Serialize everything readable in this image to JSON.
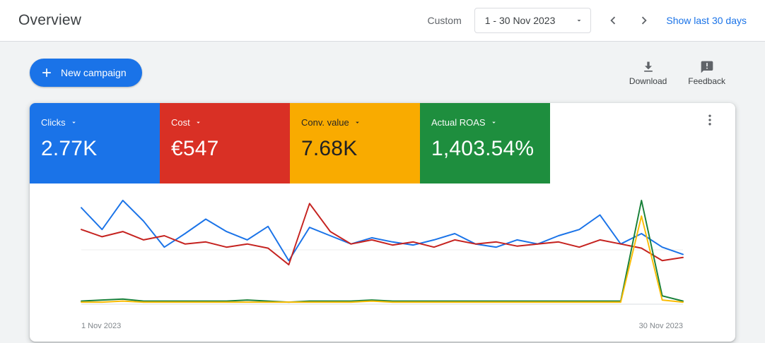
{
  "header": {
    "title": "Overview",
    "custom_label": "Custom",
    "date_range": "1 - 30 Nov 2023",
    "show_last_label": "Show last 30 days"
  },
  "actions": {
    "new_campaign_label": "New campaign",
    "download_label": "Download",
    "feedback_label": "Feedback"
  },
  "scorecards": [
    {
      "label": "Clicks",
      "value": "2.77K",
      "bg": "#1a73e8",
      "fg": "#ffffff"
    },
    {
      "label": "Cost",
      "value": "€547",
      "bg": "#d93025",
      "fg": "#ffffff"
    },
    {
      "label": "Conv. value",
      "value": "7.68K",
      "bg": "#f9ab00",
      "fg": "#202124"
    },
    {
      "label": "Actual ROAS",
      "value": "1,403.54%",
      "bg": "#1e8e3e",
      "fg": "#ffffff"
    }
  ],
  "chart_data": {
    "type": "line",
    "x": [
      1,
      2,
      3,
      4,
      5,
      6,
      7,
      8,
      9,
      10,
      11,
      12,
      13,
      14,
      15,
      16,
      17,
      18,
      19,
      20,
      21,
      22,
      23,
      24,
      25,
      26,
      27,
      28,
      29,
      30
    ],
    "x_axis_labels": [
      "1 Nov 2023",
      "30 Nov 2023"
    ],
    "ylim": [
      0,
      100
    ],
    "grid": "two faint horizontal gridlines, no y tick labels",
    "legend_position": "none",
    "series": [
      {
        "name": "Clicks",
        "color": "#1a73e8",
        "values": [
          93,
          72,
          100,
          80,
          55,
          68,
          82,
          70,
          62,
          75,
          42,
          74,
          66,
          58,
          64,
          60,
          57,
          62,
          68,
          58,
          55,
          62,
          58,
          66,
          72,
          86,
          58,
          68,
          55,
          48
        ]
      },
      {
        "name": "Cost",
        "color": "#c5221f",
        "values": [
          72,
          65,
          70,
          62,
          66,
          58,
          60,
          55,
          58,
          54,
          38,
          97,
          70,
          58,
          62,
          57,
          60,
          55,
          62,
          58,
          60,
          56,
          58,
          60,
          55,
          62,
          58,
          54,
          42,
          45
        ]
      },
      {
        "name": "Conv. value",
        "color": "#188038",
        "values": [
          3,
          4,
          5,
          3,
          3,
          3,
          3,
          3,
          4,
          3,
          2,
          3,
          3,
          3,
          4,
          3,
          3,
          3,
          3,
          3,
          3,
          3,
          3,
          3,
          3,
          3,
          3,
          100,
          8,
          3
        ]
      },
      {
        "name": "Actual ROAS",
        "color": "#fbbc04",
        "values": [
          2,
          2,
          3,
          2,
          2,
          2,
          2,
          2,
          2,
          2,
          2,
          2,
          2,
          2,
          3,
          2,
          2,
          2,
          2,
          2,
          2,
          2,
          2,
          2,
          2,
          2,
          2,
          85,
          4,
          2
        ]
      }
    ]
  }
}
